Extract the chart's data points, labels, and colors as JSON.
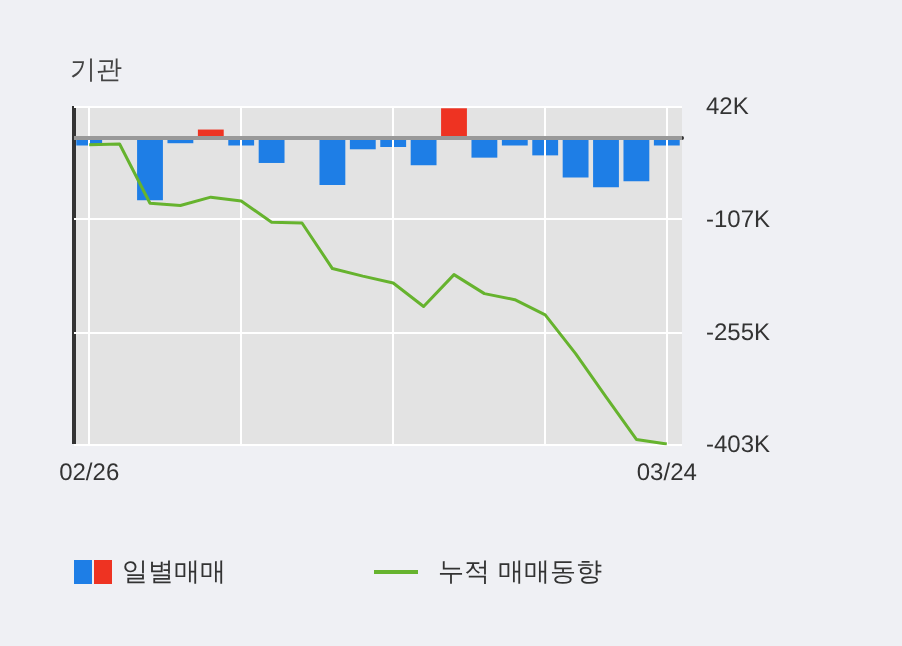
{
  "chart_data": {
    "type": "bar",
    "title": "기관",
    "categories": [
      "02/26",
      null,
      null,
      null,
      null,
      null,
      null,
      null,
      null,
      null,
      null,
      null,
      null,
      null,
      null,
      null,
      null,
      null,
      null,
      "03/24"
    ],
    "series": [
      {
        "name": "일별매매",
        "values": [
          -10,
          0,
          -82,
          -7,
          11,
          -10,
          -33,
          0,
          -62,
          -15,
          -12,
          -36,
          39,
          -26,
          -10,
          -23,
          -52,
          -65,
          -57,
          -10
        ],
        "colors": [
          "#1e7ee6",
          "#1e7ee6",
          "#1e7ee6",
          "#1e7ee6",
          "#ee3322",
          "#1e7ee6",
          "#1e7ee6",
          "#1e7ee6",
          "#1e7ee6",
          "#1e7ee6",
          "#1e7ee6",
          "#1e7ee6",
          "#ee3322",
          "#1e7ee6",
          "#1e7ee6",
          "#1e7ee6",
          "#1e7ee6",
          "#1e7ee6",
          "#1e7ee6",
          "#1e7ee6"
        ]
      },
      {
        "name": "누적 매매동향",
        "type": "line",
        "color": "#66b32e",
        "values": [
          -9,
          -8,
          -86,
          -89,
          -78,
          -83,
          -111,
          -112,
          -172,
          -182,
          -191,
          -222,
          -180,
          -205,
          -213,
          -233,
          -284,
          -341,
          -397,
          -403
        ]
      }
    ],
    "ylim": [
      -403,
      42
    ],
    "yticks": [
      {
        "value": 42,
        "label": "42K"
      },
      {
        "value": -107,
        "label": "-107K"
      },
      {
        "value": -255,
        "label": "-255K"
      },
      {
        "value": -403,
        "label": "-403K"
      }
    ],
    "ref_lines": [
      {
        "axis": "y",
        "value": 0,
        "color": "#999999"
      }
    ],
    "grid": true,
    "legend": "bottom",
    "marker": "none",
    "line_style": "solid"
  }
}
